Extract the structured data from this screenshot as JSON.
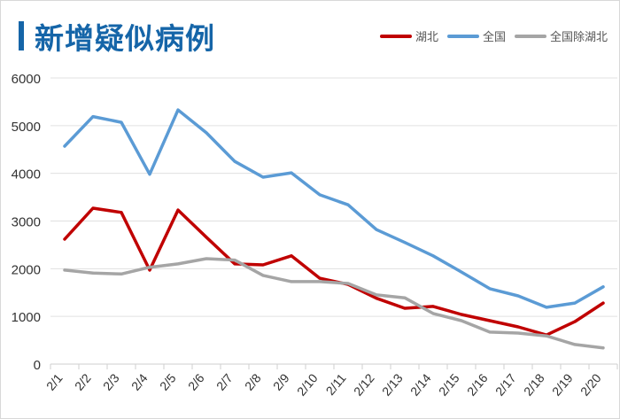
{
  "chart_data": {
    "type": "line",
    "title": "新增疑似病例",
    "xlabel": "",
    "ylabel": "",
    "ylim": [
      0,
      6000
    ],
    "yticks": [
      "0",
      "1000",
      "2000",
      "3000",
      "4000",
      "5000",
      "6000"
    ],
    "grid": true,
    "legend_position": "top-right",
    "categories": [
      "2/1",
      "2/2",
      "2/3",
      "2/4",
      "2/5",
      "2/6",
      "2/7",
      "2/8",
      "2/9",
      "2/10",
      "2/11",
      "2/12",
      "2/13",
      "2/14",
      "2/15",
      "2/16",
      "2/17",
      "2/18",
      "2/19",
      "2/20"
    ],
    "series": [
      {
        "name": "湖北",
        "color": "#c00000",
        "values": [
          2620,
          3270,
          3180,
          1970,
          3230,
          2660,
          2100,
          2080,
          2270,
          1800,
          1670,
          1380,
          1170,
          1210,
          1040,
          910,
          780,
          610,
          890,
          1280
        ]
      },
      {
        "name": "全国",
        "color": "#5b9bd5",
        "values": [
          4570,
          5190,
          5070,
          3980,
          5330,
          4850,
          4250,
          3920,
          4010,
          3550,
          3340,
          2820,
          2550,
          2270,
          1930,
          1580,
          1430,
          1190,
          1280,
          1620
        ]
      },
      {
        "name": "全国除湖北",
        "color": "#a5a5a5",
        "values": [
          1970,
          1910,
          1890,
          2030,
          2100,
          2210,
          2180,
          1860,
          1730,
          1730,
          1690,
          1450,
          1390,
          1060,
          910,
          670,
          650,
          590,
          410,
          340
        ]
      }
    ]
  }
}
